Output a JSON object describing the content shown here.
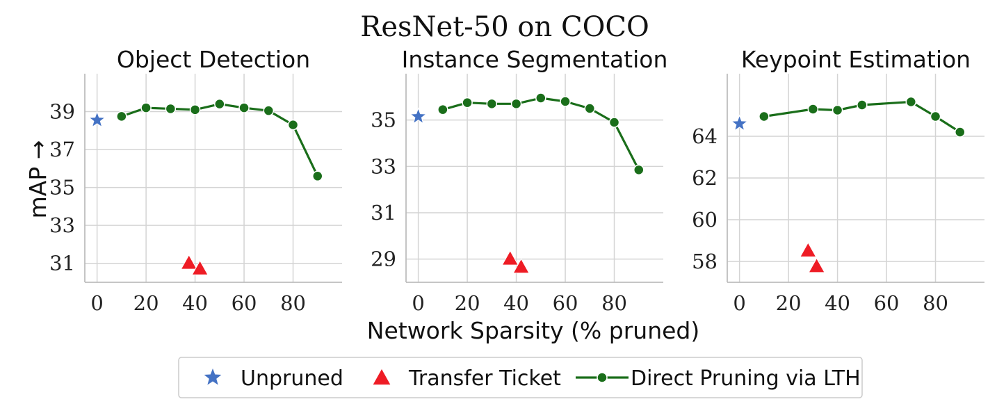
{
  "figure": {
    "title": "ResNet-50 on COCO",
    "xlabel": "Network Sparsity (% pruned)",
    "ylabel": "mAP →"
  },
  "legend": {
    "placement": "bottom-center",
    "entries": [
      {
        "label": "Unpruned",
        "marker": "star",
        "color": "#4472c4"
      },
      {
        "label": "Transfer Ticket",
        "marker": "triangle",
        "color": "#ee1c25"
      },
      {
        "label": "Direct Pruning via LTH",
        "marker": "line-circle",
        "color": "#1a6e1a"
      }
    ]
  },
  "chart_data": [
    {
      "type": "line",
      "title": "Object Detection",
      "xlim": [
        -5,
        100
      ],
      "ylim": [
        30.0,
        41.0
      ],
      "xticks": [
        0,
        20,
        40,
        60,
        80
      ],
      "yticks": [
        31,
        33,
        35,
        37,
        39
      ],
      "grid": true,
      "series": [
        {
          "name": "Unpruned",
          "x": [
            0
          ],
          "y": [
            38.55
          ]
        },
        {
          "name": "Transfer Ticket",
          "x": [
            37.5,
            42
          ],
          "y": [
            31.0,
            30.7
          ]
        },
        {
          "name": "Direct Pruning via LTH",
          "x": [
            10,
            20,
            30,
            40,
            50,
            60,
            70,
            80,
            90
          ],
          "y": [
            38.75,
            39.2,
            39.15,
            39.1,
            39.4,
            39.2,
            39.05,
            38.3,
            35.6
          ]
        }
      ]
    },
    {
      "type": "line",
      "title": "Instance Segmentation",
      "xlim": [
        -5,
        100
      ],
      "ylim": [
        28.0,
        37.0
      ],
      "xticks": [
        0,
        20,
        40,
        60,
        80
      ],
      "yticks": [
        29,
        31,
        33,
        35
      ],
      "grid": true,
      "series": [
        {
          "name": "Unpruned",
          "x": [
            0
          ],
          "y": [
            35.15
          ]
        },
        {
          "name": "Transfer Ticket",
          "x": [
            37.5,
            42
          ],
          "y": [
            29.0,
            28.65
          ]
        },
        {
          "name": "Direct Pruning via LTH",
          "x": [
            10,
            20,
            30,
            40,
            50,
            60,
            70,
            80,
            90
          ],
          "y": [
            35.45,
            35.75,
            35.7,
            35.7,
            35.95,
            35.8,
            35.5,
            34.9,
            32.85
          ]
        }
      ]
    },
    {
      "type": "line",
      "title": "Keypoint Estimation",
      "xlim": [
        -5,
        100
      ],
      "ylim": [
        57.0,
        67.0
      ],
      "xticks": [
        0,
        20,
        40,
        60,
        80
      ],
      "yticks": [
        58,
        60,
        62,
        64
      ],
      "grid": true,
      "series": [
        {
          "name": "Unpruned",
          "x": [
            0
          ],
          "y": [
            64.6
          ]
        },
        {
          "name": "Transfer Ticket",
          "x": [
            28,
            31.5
          ],
          "y": [
            58.5,
            57.75
          ]
        },
        {
          "name": "Direct Pruning via LTH",
          "x": [
            10,
            30,
            40,
            50,
            70,
            80,
            90
          ],
          "y": [
            64.95,
            65.3,
            65.25,
            65.5,
            65.65,
            64.95,
            64.2
          ]
        }
      ]
    }
  ]
}
